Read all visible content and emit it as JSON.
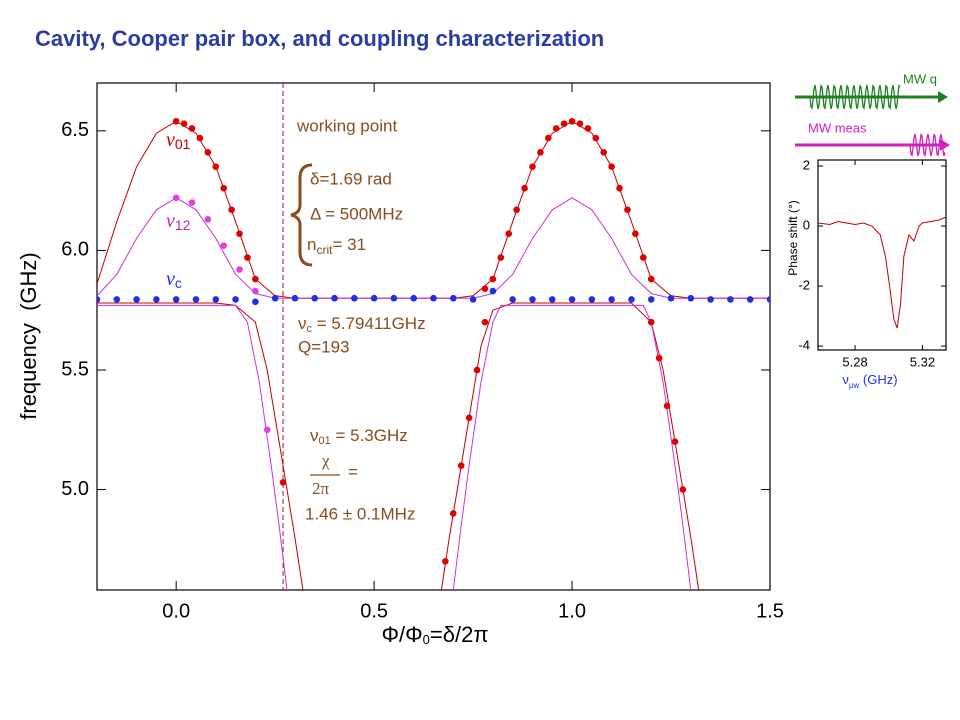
{
  "title": "Cavity, Cooper pair box, and coupling characterization",
  "chart_data": [
    {
      "type": "line",
      "ylabel": "frequency  (GHz)",
      "xlabel": {
        "text": "Φ/Φ",
        "sub": "0",
        "rest": "=δ/2π"
      },
      "xlim": [
        -0.2,
        1.5
      ],
      "xticks": [
        {
          "value": 0,
          "label": "0.0"
        },
        0.5,
        {
          "value": 1,
          "label": "1.0"
        },
        1.5
      ],
      "ylim": [
        4.58,
        6.7
      ],
      "yticks": [
        {
          "value": 5,
          "label": "5.0"
        },
        5.5,
        {
          "value": 6,
          "label": "6.0"
        },
        6.5
      ],
      "working_point_x": 0.27,
      "series": [
        {
          "mode": "line",
          "color": "#c00000",
          "x": [
            -0.2,
            -0.15,
            -0.1,
            -0.05,
            0,
            0.05,
            0.1,
            0.15,
            0.2,
            0.25,
            0.3,
            0.5,
            0.7,
            0.75,
            0.8,
            0.85,
            0.9,
            0.95,
            1.0,
            1.05,
            1.1,
            1.15,
            1.2,
            1.25,
            1.3,
            1.5
          ],
          "values": [
            5.86,
            6.12,
            6.35,
            6.49,
            6.54,
            6.49,
            6.35,
            6.12,
            5.88,
            5.81,
            5.8,
            5.8,
            5.8,
            5.81,
            5.88,
            6.12,
            6.35,
            6.49,
            6.54,
            6.49,
            6.35,
            6.12,
            5.88,
            5.81,
            5.8,
            5.8
          ]
        },
        {
          "mode": "line",
          "color": "#c00000",
          "x": [
            -0.2,
            0.1,
            0.15,
            0.2,
            0.23,
            0.26,
            0.28,
            0.3,
            0.32
          ],
          "values": [
            5.78,
            5.78,
            5.77,
            5.7,
            5.5,
            5.2,
            5.0,
            4.8,
            4.58
          ]
        },
        {
          "mode": "line",
          "color": "#c00000",
          "x": [
            0.67,
            0.69,
            0.71,
            0.74,
            0.77,
            0.8,
            0.85,
            1.15,
            1.2,
            1.23,
            1.26,
            1.28,
            1.3,
            1.32
          ],
          "values": [
            4.58,
            4.8,
            5.0,
            5.3,
            5.6,
            5.75,
            5.78,
            5.78,
            5.7,
            5.5,
            5.2,
            5.0,
            4.8,
            4.58
          ]
        },
        {
          "mode": "line",
          "color": "#d030d0",
          "x": [
            -0.2,
            -0.15,
            -0.1,
            -0.05,
            0,
            0.05,
            0.1,
            0.15,
            0.2,
            0.25,
            0.75,
            0.8,
            0.85,
            0.9,
            0.95,
            1.0,
            1.05,
            1.1,
            1.15,
            1.2,
            1.25,
            1.5
          ],
          "values": [
            5.81,
            5.9,
            6.05,
            6.17,
            6.22,
            6.17,
            6.05,
            5.9,
            5.82,
            5.8,
            5.8,
            5.82,
            5.9,
            6.05,
            6.17,
            6.22,
            6.17,
            6.05,
            5.9,
            5.82,
            5.8,
            5.8
          ]
        },
        {
          "mode": "line",
          "color": "#d030d0",
          "x": [
            -0.2,
            0.15,
            0.18,
            0.21,
            0.24,
            0.26,
            0.28
          ],
          "values": [
            5.77,
            5.77,
            5.7,
            5.45,
            5.1,
            4.85,
            4.58
          ]
        },
        {
          "mode": "line",
          "color": "#d030d0",
          "x": [
            0.7,
            0.72,
            0.74,
            0.77,
            0.8,
            0.82,
            1.18,
            1.2,
            1.23,
            1.26,
            1.28,
            1.3
          ],
          "values": [
            4.58,
            4.85,
            5.1,
            5.45,
            5.7,
            5.77,
            5.77,
            5.7,
            5.45,
            5.1,
            4.85,
            4.58
          ]
        },
        {
          "mode": "markers",
          "color": "#2030e0",
          "x": [
            -0.2,
            -0.15,
            -0.1,
            -0.05,
            0,
            0.05,
            0.1,
            0.15,
            0.2,
            0.25,
            0.3,
            0.35,
            0.4,
            0.45,
            0.5,
            0.55,
            0.6,
            0.65,
            0.7,
            0.75,
            0.8,
            0.85,
            0.9,
            0.95,
            1.0,
            1.05,
            1.1,
            1.15,
            1.2,
            1.25,
            1.3,
            1.35,
            1.4,
            1.45,
            1.5
          ],
          "values": [
            5.795,
            5.795,
            5.795,
            5.795,
            5.795,
            5.795,
            5.795,
            5.795,
            5.785,
            5.8,
            5.8,
            5.8,
            5.8,
            5.8,
            5.8,
            5.8,
            5.8,
            5.8,
            5.8,
            5.795,
            5.83,
            5.795,
            5.795,
            5.795,
            5.795,
            5.795,
            5.795,
            5.795,
            5.795,
            5.8,
            5.8,
            5.795,
            5.795,
            5.795,
            5.795
          ]
        },
        {
          "mode": "markers",
          "color": "#e00000",
          "x": [
            0,
            0.02,
            0.04,
            0.06,
            0.08,
            0.1,
            0.12,
            0.14,
            0.16,
            0.18,
            0.2,
            0.78,
            0.8,
            0.82,
            0.84,
            0.86,
            0.88,
            0.9,
            0.92,
            0.94,
            0.96,
            0.98,
            1.0,
            1.02,
            1.04,
            1.06,
            1.08,
            1.1,
            1.12,
            1.14,
            1.16,
            1.18,
            1.2
          ],
          "values": [
            6.54,
            6.53,
            6.51,
            6.47,
            6.41,
            6.35,
            6.26,
            6.17,
            6.07,
            5.97,
            5.88,
            5.84,
            5.88,
            5.97,
            6.07,
            6.17,
            6.26,
            6.35,
            6.41,
            6.47,
            6.51,
            6.53,
            6.54,
            6.53,
            6.51,
            6.47,
            6.41,
            6.35,
            6.26,
            6.17,
            6.07,
            5.97,
            5.88
          ]
        },
        {
          "mode": "markers",
          "color": "#e00000",
          "x": [
            0.27,
            0.68,
            0.7,
            0.72,
            0.74,
            0.76,
            0.78,
            1.2,
            1.22,
            1.24,
            1.26,
            1.28
          ],
          "values": [
            5.03,
            4.7,
            4.9,
            5.1,
            5.3,
            5.5,
            5.7,
            5.7,
            5.55,
            5.35,
            5.2,
            5.0
          ]
        },
        {
          "mode": "markers",
          "color": "#e040e0",
          "x": [
            0,
            0.04,
            0.08,
            0.12,
            0.16,
            0.2,
            0.23
          ],
          "values": [
            6.22,
            6.2,
            6.13,
            6.02,
            5.92,
            5.83,
            5.25
          ]
        }
      ],
      "curve_labels": [
        {
          "text": "ν",
          "sub": "01"
        },
        {
          "text": "ν",
          "sub": "12"
        },
        {
          "text": "ν",
          "sub": "c"
        }
      ],
      "annotations": {
        "working_point": "working point",
        "delta": "δ=1.69 rad",
        "detuning": "Δ = 500MHz",
        "ncrit": {
          "text": "n",
          "sub": "crit",
          "rest": "= 31"
        },
        "cavity": {
          "text": "ν",
          "sub": "c",
          "rest": " = 5.79411GHz"
        },
        "q": "Q=193",
        "nu01": {
          "text": "ν",
          "sub": "01",
          "rest": " = 5.3GHz"
        },
        "chi_num": "χ",
        "chi_den": "2π",
        "chi_eq": "=",
        "chi_value": "1.46 ± 0.1MHz"
      }
    },
    {
      "type": "line",
      "ylabel": "Phase shift (°)",
      "xlabel": {
        "text": "ν",
        "sub": "μw",
        "rest": " (GHz)"
      },
      "xlim": [
        5.258,
        5.334
      ],
      "xticks": [
        5.28,
        5.32
      ],
      "ylim": [
        -4.13,
        2.2
      ],
      "yticks": [
        2,
        0,
        -2,
        -4
      ],
      "series": [
        {
          "mode": "line",
          "color": "#c00000",
          "x": [
            5.258,
            5.265,
            5.27,
            5.275,
            5.28,
            5.285,
            5.29,
            5.295,
            5.298,
            5.301,
            5.303,
            5.305,
            5.307,
            5.309,
            5.312,
            5.315,
            5.318,
            5.32,
            5.325,
            5.33,
            5.334
          ],
          "values": [
            0.1,
            0.05,
            0.15,
            0.1,
            0.05,
            0.1,
            0.0,
            -0.3,
            -1.0,
            -2.2,
            -3.1,
            -3.4,
            -2.6,
            -1.0,
            -0.3,
            -0.5,
            0.0,
            0.1,
            0.15,
            0.2,
            0.3
          ]
        }
      ]
    }
  ],
  "mw_q": "MW q",
  "mw_meas": "MW meas"
}
